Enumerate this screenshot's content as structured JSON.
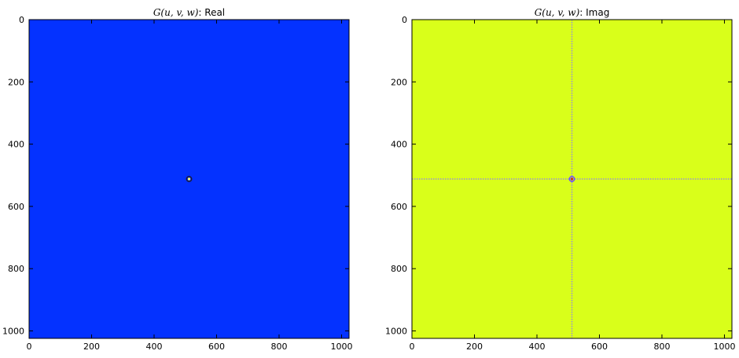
{
  "chart_data": [
    {
      "type": "heatmap",
      "title": {
        "math": "G(u, v, w)",
        "suffix": ": Real"
      },
      "xlim": [
        0,
        1024
      ],
      "ylim": [
        1024,
        0
      ],
      "xticks": [
        0,
        200,
        400,
        600,
        800,
        1000
      ],
      "yticks": [
        0,
        200,
        400,
        600,
        800,
        1000
      ],
      "xtick_labels": [
        "0",
        "200",
        "400",
        "600",
        "800",
        "1000"
      ],
      "ytick_labels": [
        "0",
        "200",
        "400",
        "600",
        "800",
        "1000"
      ],
      "y_inverted": true,
      "background_color": "#0432ff",
      "features": [
        {
          "kind": "peak",
          "x": 512,
          "y": 512,
          "color": "#ffff66",
          "ring_color": "#1c1c3a"
        }
      ]
    },
    {
      "type": "heatmap",
      "title": {
        "math": "G(u, v, w)",
        "suffix": ": Imag"
      },
      "xlim": [
        0,
        1024
      ],
      "ylim": [
        1024,
        0
      ],
      "xticks": [
        0,
        200,
        400,
        600,
        800,
        1000
      ],
      "yticks": [
        0,
        200,
        400,
        600,
        800,
        1000
      ],
      "xtick_labels": [
        "0",
        "200",
        "400",
        "600",
        "800",
        "1000"
      ],
      "ytick_labels": [
        "0",
        "200",
        "400",
        "600",
        "800",
        "1000"
      ],
      "y_inverted": true,
      "background_color": "#d9ff1a",
      "features": [
        {
          "kind": "vline",
          "x": 512,
          "color": "#8a79ff"
        },
        {
          "kind": "hline",
          "y": 512,
          "color": "#8a79ff"
        },
        {
          "kind": "peak",
          "x": 512,
          "y": 512,
          "color": "#cc2a1a",
          "ring_color": "#6b4cff"
        }
      ]
    }
  ]
}
